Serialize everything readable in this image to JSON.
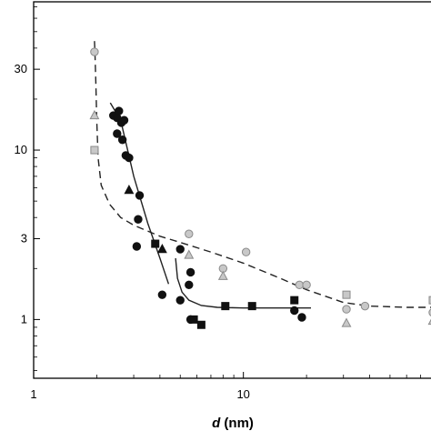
{
  "chart_data": {
    "type": "scatter",
    "xlabel_var": "d",
    "xlabel_unit": " (nm)",
    "ylabel": "",
    "xscale": "log",
    "yscale": "log",
    "xlim": [
      1,
      80
    ],
    "ylim": [
      0.45,
      75
    ],
    "x_ticks": [
      1,
      10
    ],
    "x_tick_labels": [
      "1",
      "10"
    ],
    "y_ticks": [
      1,
      3,
      10,
      30
    ],
    "y_tick_labels": [
      "1",
      "3",
      "10",
      "30"
    ],
    "grid": false,
    "legend": "none",
    "colors": {
      "black": "#111111",
      "gray_fill": "#c8c8c8",
      "gray_stroke": "#8a8a8a"
    },
    "series": [
      {
        "marker": "circle",
        "style": "black",
        "points": [
          [
            2.4,
            16.0
          ],
          [
            2.5,
            15.5
          ],
          [
            2.55,
            17.0
          ],
          [
            2.62,
            14.5
          ],
          [
            2.7,
            15.0
          ],
          [
            2.5,
            12.5
          ],
          [
            2.65,
            11.5
          ],
          [
            2.75,
            9.3
          ],
          [
            2.85,
            9.0
          ],
          [
            3.2,
            5.4
          ],
          [
            3.15,
            3.9
          ],
          [
            3.1,
            2.7
          ],
          [
            4.1,
            1.4
          ],
          [
            5.0,
            2.6
          ],
          [
            5.0,
            1.3
          ],
          [
            5.6,
            1.9
          ],
          [
            5.5,
            1.6
          ],
          [
            5.6,
            1.0
          ],
          [
            17.5,
            1.13
          ],
          [
            19.0,
            1.03
          ]
        ]
      },
      {
        "marker": "square",
        "style": "black",
        "points": [
          [
            3.8,
            2.8
          ],
          [
            5.8,
            1.0
          ],
          [
            6.3,
            0.93
          ],
          [
            8.2,
            1.2
          ],
          [
            11.0,
            1.2
          ],
          [
            17.5,
            1.3
          ]
        ]
      },
      {
        "marker": "triangle",
        "style": "black",
        "points": [
          [
            2.85,
            5.8
          ],
          [
            4.1,
            2.6
          ]
        ]
      },
      {
        "marker": "circle",
        "style": "gray",
        "points": [
          [
            1.95,
            38.0
          ],
          [
            5.5,
            3.2
          ],
          [
            8.0,
            2.0
          ],
          [
            10.3,
            2.5
          ],
          [
            18.5,
            1.6
          ],
          [
            20.0,
            1.6
          ],
          [
            31.0,
            1.15
          ],
          [
            38.0,
            1.2
          ],
          [
            80.0,
            1.1
          ]
        ]
      },
      {
        "marker": "square",
        "style": "gray",
        "points": [
          [
            1.95,
            10.0
          ],
          [
            31.0,
            1.4
          ],
          [
            80.0,
            1.3
          ]
        ]
      },
      {
        "marker": "triangle",
        "style": "gray",
        "points": [
          [
            1.95,
            16.0
          ],
          [
            5.5,
            2.4
          ],
          [
            8.0,
            1.8
          ],
          [
            31.0,
            0.95
          ],
          [
            80.0,
            0.98
          ]
        ]
      }
    ],
    "curves": [
      {
        "style": "dashed",
        "color": "#222222",
        "points": [
          [
            1.95,
            44
          ],
          [
            1.96,
            38
          ],
          [
            1.98,
            25
          ],
          [
            2.0,
            15
          ],
          [
            2.03,
            9
          ],
          [
            2.1,
            6.2
          ],
          [
            2.3,
            4.8
          ],
          [
            2.6,
            4.0
          ],
          [
            3.0,
            3.6
          ],
          [
            4.0,
            3.1
          ],
          [
            5.0,
            2.85
          ],
          [
            7.0,
            2.5
          ],
          [
            10.0,
            2.15
          ],
          [
            15.0,
            1.75
          ],
          [
            20.0,
            1.5
          ],
          [
            30.0,
            1.26
          ],
          [
            40.0,
            1.2
          ],
          [
            60.0,
            1.18
          ],
          [
            80.0,
            1.18
          ]
        ]
      },
      {
        "style": "solid",
        "color": "#222222",
        "points": [
          [
            2.32,
            19.0
          ],
          [
            2.6,
            15.0
          ],
          [
            3.0,
            7.0
          ],
          [
            3.5,
            3.7
          ],
          [
            4.0,
            2.3
          ],
          [
            4.4,
            1.62
          ]
        ]
      },
      {
        "style": "solid",
        "color": "#222222",
        "points": [
          [
            4.75,
            2.3
          ],
          [
            4.85,
            1.75
          ],
          [
            5.1,
            1.45
          ],
          [
            5.5,
            1.3
          ],
          [
            6.3,
            1.21
          ],
          [
            7.5,
            1.18
          ],
          [
            10.0,
            1.17
          ],
          [
            15.0,
            1.17
          ],
          [
            21.0,
            1.17
          ]
        ]
      }
    ]
  }
}
